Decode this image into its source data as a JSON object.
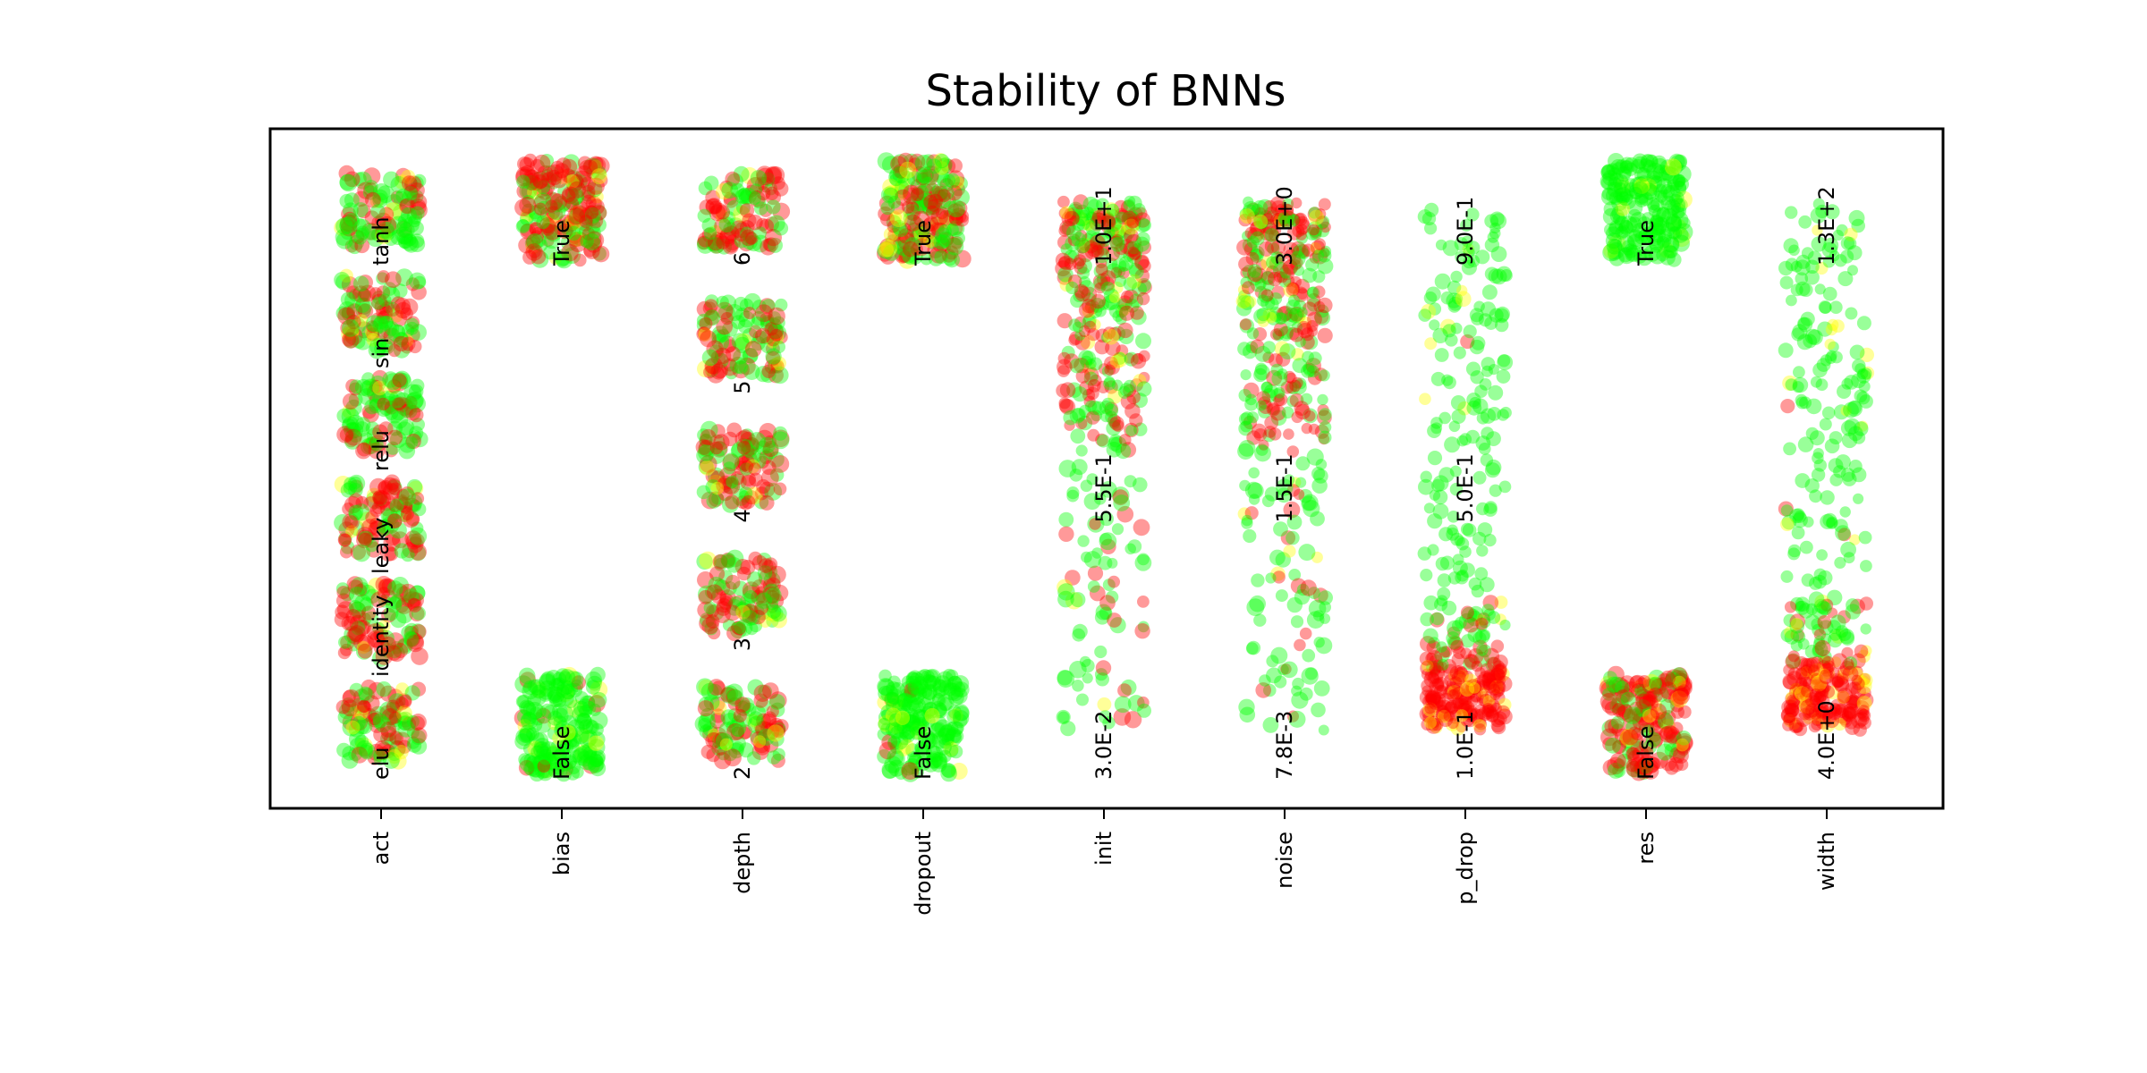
{
  "chart_data": {
    "type": "scatter",
    "title": "Stability of BNNs",
    "xlabel": "",
    "ylabel": "",
    "grid": false,
    "point_colors": {
      "stable": "#00ff00",
      "mixed": "#ffff00",
      "unstable": "#ff0000"
    },
    "categories": [
      "act",
      "bias",
      "depth",
      "dropout",
      "init",
      "noise",
      "p_drop",
      "res",
      "width"
    ],
    "columns": [
      {
        "name": "act",
        "kind": "categorical",
        "levels": [
          "elu",
          "identity",
          "leaky",
          "relu",
          "sin",
          "tanh"
        ],
        "red_fraction": [
          0.45,
          0.5,
          0.6,
          0.25,
          0.5,
          0.3
        ]
      },
      {
        "name": "bias",
        "kind": "categorical",
        "levels": [
          "False",
          "True"
        ],
        "red_fraction": [
          0.05,
          0.6
        ]
      },
      {
        "name": "depth",
        "kind": "categorical",
        "levels": [
          "2",
          "3",
          "4",
          "5",
          "6"
        ],
        "red_fraction": [
          0.4,
          0.5,
          0.55,
          0.45,
          0.5
        ]
      },
      {
        "name": "dropout",
        "kind": "categorical",
        "levels": [
          "False",
          "True"
        ],
        "red_fraction": [
          0.03,
          0.55
        ]
      },
      {
        "name": "init",
        "kind": "continuous",
        "ticks": [
          "3.0E-2",
          "5.5E-1",
          "1.0E+1"
        ]
      },
      {
        "name": "noise",
        "kind": "continuous",
        "ticks": [
          "7.8E-3",
          "1.5E-1",
          "3.0E+0"
        ]
      },
      {
        "name": "p_drop",
        "kind": "continuous",
        "ticks": [
          "1.0E-1",
          "5.0E-1",
          "9.0E-1"
        ]
      },
      {
        "name": "res",
        "kind": "categorical",
        "levels": [
          "False",
          "True"
        ],
        "red_fraction": [
          0.7,
          0.0
        ]
      },
      {
        "name": "width",
        "kind": "continuous",
        "ticks": [
          "4.0E+0",
          "1.3E+2"
        ]
      }
    ]
  }
}
